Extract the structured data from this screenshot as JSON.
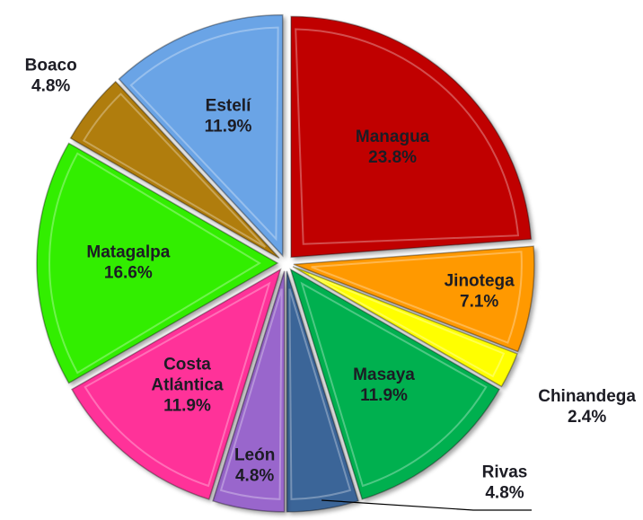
{
  "chart_data": {
    "type": "pie",
    "categories": [
      "Managua",
      "Jinotega",
      "Chinandega",
      "Masaya",
      "Rivas",
      "León",
      "Costa Atlántica",
      "Matagalpa",
      "Boaco",
      "Estelí"
    ],
    "values": [
      23.8,
      7.1,
      2.4,
      11.9,
      4.8,
      4.8,
      11.9,
      16.6,
      4.8,
      11.9
    ],
    "value_labels": [
      "23.8%",
      "7.1%",
      "2.4%",
      "11.9%",
      "4.8%",
      "4.8%",
      "11.9%",
      "16.6%",
      "4.8%",
      "11.9%"
    ],
    "colors": [
      "#c00000",
      "#ff9900",
      "#ffff00",
      "#00b050",
      "#3b6598",
      "#9966cc",
      "#ff3399",
      "#33ee00",
      "#b07d0a",
      "#6aa4e6"
    ]
  }
}
